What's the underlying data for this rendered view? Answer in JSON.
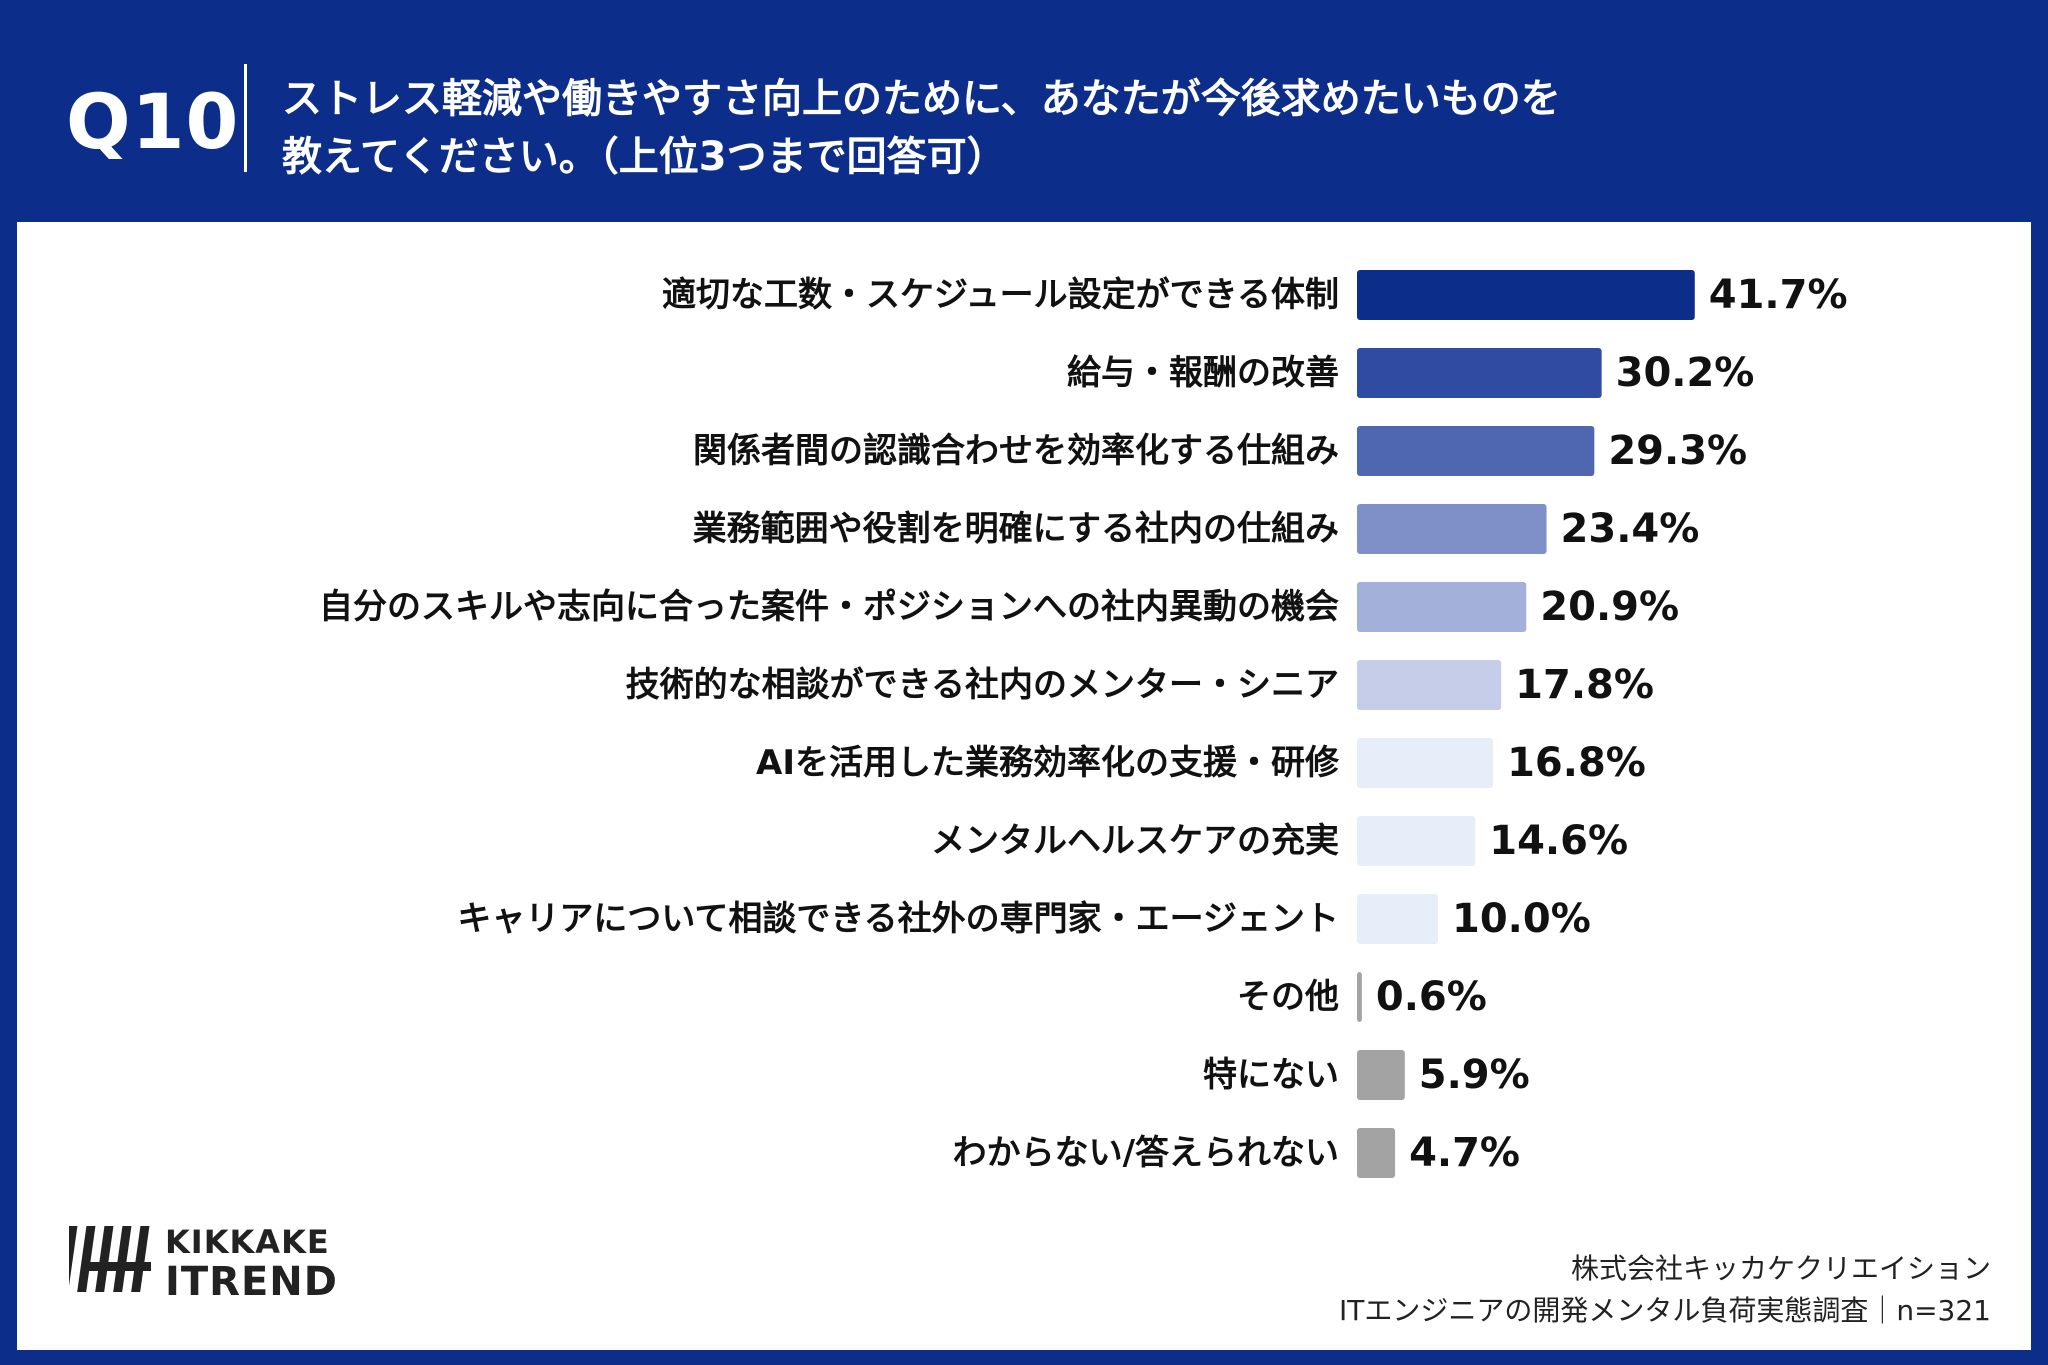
{
  "header": {
    "question_number": "Q10",
    "question_line1": "ストレス軽減や働きやすさ向上のために、あなたが今後求めたいものを",
    "question_line2": "教えてください。（上位3つまで回答可）"
  },
  "chart_data": {
    "type": "bar",
    "orientation": "horizontal",
    "categories": [
      "適切な工数・スケジュール設定ができる体制",
      "給与・報酬の改善",
      "関係者間の認識合わせを効率化する仕組み",
      "業務範囲や役割を明確にする社内の仕組み",
      "自分のスキルや志向に合った案件・ポジションへの社内異動の機会",
      "技術的な相談ができる社内のメンター・シニア",
      "AIを活用した業務効率化の支援・研修",
      "メンタルヘルスケアの充実",
      "キャリアについて相談できる社外の専門家・エージェント",
      "その他",
      "特にない",
      "わからない/答えられない"
    ],
    "values": [
      41.7,
      30.2,
      29.3,
      23.4,
      20.9,
      17.8,
      16.8,
      14.6,
      10.0,
      0.6,
      5.9,
      4.7
    ],
    "value_labels": [
      "41.7%",
      "30.2%",
      "29.3%",
      "23.4%",
      "20.9%",
      "17.8%",
      "16.8%",
      "14.6%",
      "10.0%",
      "0.6%",
      "5.9%",
      "4.7%"
    ],
    "colors": [
      "#0c2d8a",
      "#2f4ba2",
      "#4f67b0",
      "#7f90c8",
      "#a3b0da",
      "#c5cde9",
      "#e8eef9",
      "#e8eef9",
      "#e8eef9",
      "#a3a3a3",
      "#a3a3a3",
      "#a3a3a3"
    ],
    "xlim": [
      0,
      100
    ],
    "grid": false,
    "legend": "none"
  },
  "footer": {
    "logo_top": "KIKKAKE",
    "logo_bottom": "ITREND",
    "company": "株式会社キッカケクリエイション",
    "survey": "ITエンジニアの開発メンタル負荷実態調査｜n=321"
  },
  "icons": {
    "logo": "kikkake-itrend-logo-icon"
  }
}
